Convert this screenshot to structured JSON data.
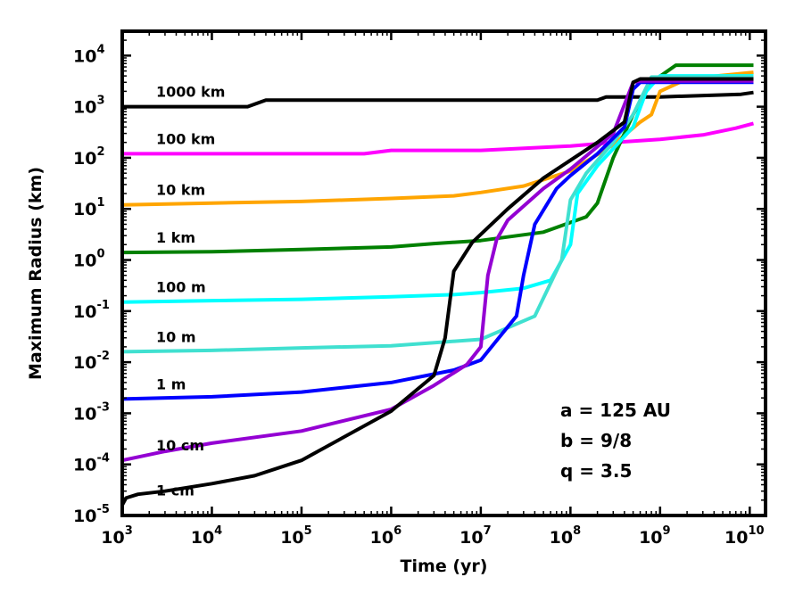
{
  "chart_data": {
    "type": "line",
    "xlabel": "Time (yr)",
    "ylabel": "Maximum Radius (km)",
    "x_scale": "log",
    "y_scale": "log",
    "xlim": [
      1000,
      15000000000
    ],
    "ylim": [
      1e-05,
      30000
    ],
    "x_ticks": [
      {
        "base": "10",
        "exp": "3",
        "value": 1000
      },
      {
        "base": "10",
        "exp": "4",
        "value": 10000
      },
      {
        "base": "10",
        "exp": "5",
        "value": 100000
      },
      {
        "base": "10",
        "exp": "6",
        "value": 1000000
      },
      {
        "base": "10",
        "exp": "7",
        "value": 10000000
      },
      {
        "base": "10",
        "exp": "8",
        "value": 100000000
      },
      {
        "base": "10",
        "exp": "9",
        "value": 1000000000
      },
      {
        "base": "10",
        "exp": "10",
        "value": 10000000000
      }
    ],
    "y_ticks": [
      {
        "base": "10",
        "exp": "-5",
        "value": 1e-05
      },
      {
        "base": "10",
        "exp": "-4",
        "value": 0.0001
      },
      {
        "base": "10",
        "exp": "-3",
        "value": 0.001
      },
      {
        "base": "10",
        "exp": "-2",
        "value": 0.01
      },
      {
        "base": "10",
        "exp": "-1",
        "value": 0.1
      },
      {
        "base": "10",
        "exp": "0",
        "value": 1
      },
      {
        "base": "10",
        "exp": "1",
        "value": 10
      },
      {
        "base": "10",
        "exp": "2",
        "value": 100
      },
      {
        "base": "10",
        "exp": "3",
        "value": 1000
      },
      {
        "base": "10",
        "exp": "4",
        "value": 10000
      }
    ],
    "grid": false,
    "annotations": [
      "a = 125 AU",
      "b = 9/8",
      "q = 3.5"
    ],
    "series": [
      {
        "name": "1000 km",
        "color": "#000000",
        "x": [
          1000,
          1500,
          10000,
          25000,
          40000,
          1000000,
          10000000,
          100000000,
          200000000,
          250000000,
          1000000000,
          8000000000,
          11000000000
        ],
        "y": [
          1000,
          1000,
          1000,
          1000,
          1350,
          1350,
          1350,
          1350,
          1350,
          1550,
          1550,
          1750,
          1900
        ]
      },
      {
        "name": "100 km",
        "color": "#ff00ff",
        "x": [
          1000,
          10000,
          100000,
          500000,
          1000000,
          10000000,
          100000000,
          300000000,
          1000000000,
          3000000000,
          7000000000,
          11000000000
        ],
        "y": [
          120,
          120,
          120,
          120,
          140,
          140,
          170,
          200,
          230,
          280,
          380,
          470
        ]
      },
      {
        "name": "10 km",
        "color": "#ffa500",
        "x": [
          1000,
          10000,
          100000,
          1000000,
          5000000,
          10000000,
          30000000,
          100000000,
          300000000,
          600000000,
          800000000,
          1000000000,
          2000000000,
          11000000000
        ],
        "y": [
          12,
          13,
          14,
          16,
          18,
          21,
          28,
          55,
          180,
          500,
          700,
          2000,
          3500,
          4700
        ]
      },
      {
        "name": "1 km",
        "color": "#008000",
        "x": [
          1000,
          10000,
          100000,
          1000000,
          3000000,
          10000000,
          50000000,
          150000000,
          200000000,
          300000000,
          500000000,
          800000000,
          1500000000,
          11000000000
        ],
        "y": [
          1.4,
          1.45,
          1.6,
          1.8,
          2.1,
          2.4,
          3.5,
          7,
          13,
          100,
          700,
          3000,
          6500,
          6500
        ]
      },
      {
        "name": "100 m",
        "color": "#00ffff",
        "x": [
          1000,
          10000,
          100000,
          1000000,
          5000000,
          10000000,
          30000000,
          60000000,
          100000000,
          120000000,
          200000000,
          300000000,
          500000000,
          700000000,
          1000000000,
          11000000000
        ],
        "y": [
          0.15,
          0.16,
          0.17,
          0.19,
          0.21,
          0.23,
          0.28,
          0.4,
          2,
          20,
          70,
          150,
          400,
          2000,
          4000,
          4000
        ]
      },
      {
        "name": "10 m",
        "color": "#40e0d0",
        "x": [
          1000,
          10000,
          100000,
          1000000,
          10000000,
          40000000,
          80000000,
          100000000,
          150000000,
          300000000,
          500000000,
          800000000,
          11000000000
        ],
        "y": [
          0.016,
          0.017,
          0.019,
          0.021,
          0.028,
          0.08,
          1,
          15,
          50,
          200,
          700,
          3800,
          3800
        ]
      },
      {
        "name": "1 m",
        "color": "#0000ff",
        "x": [
          1000,
          10000,
          100000,
          1000000,
          5000000,
          10000000,
          25000000,
          30000000,
          40000000,
          70000000,
          100000000,
          200000000,
          400000000,
          500000000,
          600000000,
          11000000000
        ],
        "y": [
          0.0019,
          0.0021,
          0.0026,
          0.004,
          0.007,
          0.011,
          0.08,
          0.5,
          5,
          25,
          45,
          120,
          400,
          2200,
          3000,
          3000
        ]
      },
      {
        "name": "10 cm",
        "color": "#9400d3",
        "x": [
          1000,
          3000,
          10000,
          100000,
          1000000,
          3000000,
          7000000,
          10000000,
          12000000,
          15000000,
          20000000,
          50000000,
          100000000,
          300000000,
          500000000,
          600000000,
          11000000000
        ],
        "y": [
          0.00012,
          0.00018,
          0.00026,
          0.00045,
          0.0012,
          0.0035,
          0.009,
          0.02,
          0.5,
          2.5,
          6,
          25,
          60,
          300,
          3000,
          3200,
          3200
        ]
      },
      {
        "name": "1 cm",
        "color": "#000000",
        "x": [
          1000,
          1100,
          1500,
          3000,
          10000,
          30000,
          100000,
          1000000,
          3000000,
          4000000,
          5000000,
          8000000,
          20000000,
          50000000,
          200000000,
          400000000,
          500000000,
          600000000,
          11000000000
        ],
        "y": [
          1.6e-05,
          2.2e-05,
          2.6e-05,
          3e-05,
          4.2e-05,
          6e-05,
          0.00012,
          0.0011,
          0.0055,
          0.03,
          0.6,
          2.2,
          10,
          40,
          200,
          500,
          3000,
          3500,
          3500
        ]
      }
    ]
  }
}
